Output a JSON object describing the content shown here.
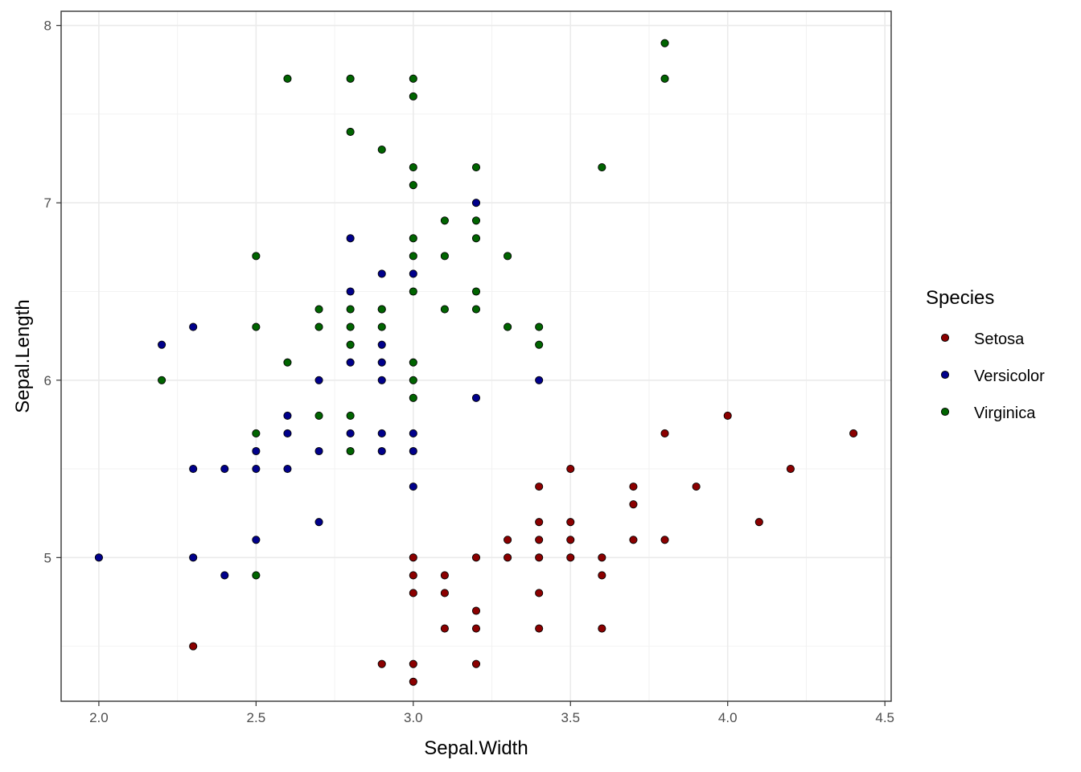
{
  "chart_data": {
    "type": "scatter",
    "xlabel": "Sepal.Width",
    "ylabel": "Sepal.Length",
    "xlim": [
      1.88,
      4.52
    ],
    "ylim": [
      4.19,
      8.08
    ],
    "x_ticks": [
      2.0,
      2.5,
      3.0,
      3.5,
      4.0,
      4.5
    ],
    "x_tick_labels": [
      "2.0",
      "2.5",
      "3.0",
      "3.5",
      "4.0",
      "4.5"
    ],
    "y_ticks": [
      5,
      6,
      7,
      8
    ],
    "y_tick_labels": [
      "5",
      "6",
      "7",
      "8"
    ],
    "grid": true,
    "legend": {
      "title": "Species",
      "position": "right"
    },
    "series": [
      {
        "name": "Setosa",
        "color": "#8b0000",
        "points": [
          [
            2.3,
            4.5
          ],
          [
            2.9,
            4.4
          ],
          [
            3.0,
            4.4
          ],
          [
            3.0,
            4.3
          ],
          [
            3.0,
            5.0
          ],
          [
            3.0,
            4.9
          ],
          [
            3.0,
            4.8
          ],
          [
            3.1,
            4.9
          ],
          [
            3.1,
            4.8
          ],
          [
            3.1,
            4.6
          ],
          [
            3.2,
            5.0
          ],
          [
            3.2,
            4.7
          ],
          [
            3.2,
            4.6
          ],
          [
            3.2,
            4.4
          ],
          [
            3.3,
            5.1
          ],
          [
            3.3,
            5.0
          ],
          [
            3.4,
            5.4
          ],
          [
            3.4,
            5.2
          ],
          [
            3.4,
            5.1
          ],
          [
            3.4,
            5.0
          ],
          [
            3.4,
            4.8
          ],
          [
            3.4,
            4.6
          ],
          [
            3.5,
            5.5
          ],
          [
            3.5,
            5.2
          ],
          [
            3.5,
            5.1
          ],
          [
            3.5,
            5.0
          ],
          [
            3.6,
            5.0
          ],
          [
            3.6,
            4.9
          ],
          [
            3.6,
            4.6
          ],
          [
            3.7,
            5.4
          ],
          [
            3.7,
            5.3
          ],
          [
            3.7,
            5.1
          ],
          [
            3.8,
            5.7
          ],
          [
            3.8,
            5.1
          ],
          [
            3.9,
            5.4
          ],
          [
            4.0,
            5.8
          ],
          [
            4.1,
            5.2
          ],
          [
            4.2,
            5.5
          ],
          [
            4.4,
            5.7
          ]
        ]
      },
      {
        "name": "Versicolor",
        "color": "#00008b",
        "points": [
          [
            2.0,
            5.0
          ],
          [
            2.2,
            6.2
          ],
          [
            2.3,
            6.3
          ],
          [
            2.3,
            5.5
          ],
          [
            2.3,
            5.0
          ],
          [
            2.4,
            5.5
          ],
          [
            2.4,
            4.9
          ],
          [
            2.5,
            5.6
          ],
          [
            2.5,
            5.5
          ],
          [
            2.5,
            5.1
          ],
          [
            2.6,
            5.8
          ],
          [
            2.6,
            5.7
          ],
          [
            2.6,
            5.5
          ],
          [
            2.7,
            6.0
          ],
          [
            2.7,
            5.6
          ],
          [
            2.7,
            5.2
          ],
          [
            2.8,
            6.8
          ],
          [
            2.8,
            6.5
          ],
          [
            2.8,
            6.1
          ],
          [
            2.8,
            5.7
          ],
          [
            2.9,
            6.6
          ],
          [
            2.9,
            6.4
          ],
          [
            2.9,
            6.2
          ],
          [
            2.9,
            6.1
          ],
          [
            2.9,
            6.0
          ],
          [
            2.9,
            5.7
          ],
          [
            2.9,
            5.6
          ],
          [
            3.0,
            6.6
          ],
          [
            3.0,
            5.7
          ],
          [
            3.0,
            5.6
          ],
          [
            3.0,
            5.4
          ],
          [
            3.2,
            7.0
          ],
          [
            3.2,
            5.9
          ],
          [
            3.4,
            6.0
          ]
        ]
      },
      {
        "name": "Virginica",
        "color": "#006400",
        "points": [
          [
            2.2,
            6.0
          ],
          [
            2.5,
            6.7
          ],
          [
            2.5,
            6.3
          ],
          [
            2.5,
            5.7
          ],
          [
            2.5,
            4.9
          ],
          [
            2.6,
            7.7
          ],
          [
            2.6,
            6.1
          ],
          [
            2.7,
            6.4
          ],
          [
            2.7,
            6.3
          ],
          [
            2.7,
            5.8
          ],
          [
            2.8,
            7.7
          ],
          [
            2.8,
            7.4
          ],
          [
            2.8,
            6.4
          ],
          [
            2.8,
            6.3
          ],
          [
            2.8,
            6.2
          ],
          [
            2.8,
            5.8
          ],
          [
            2.8,
            5.6
          ],
          [
            2.9,
            7.3
          ],
          [
            2.9,
            6.4
          ],
          [
            2.9,
            6.3
          ],
          [
            3.0,
            7.7
          ],
          [
            3.0,
            7.6
          ],
          [
            3.0,
            7.2
          ],
          [
            3.0,
            7.1
          ],
          [
            3.0,
            6.8
          ],
          [
            3.0,
            6.7
          ],
          [
            3.0,
            6.5
          ],
          [
            3.0,
            6.1
          ],
          [
            3.0,
            6.0
          ],
          [
            3.0,
            5.9
          ],
          [
            3.1,
            6.9
          ],
          [
            3.1,
            6.7
          ],
          [
            3.1,
            6.4
          ],
          [
            3.2,
            7.2
          ],
          [
            3.2,
            6.9
          ],
          [
            3.2,
            6.8
          ],
          [
            3.2,
            6.5
          ],
          [
            3.2,
            6.4
          ],
          [
            3.3,
            6.7
          ],
          [
            3.3,
            6.3
          ],
          [
            3.4,
            6.3
          ],
          [
            3.4,
            6.2
          ],
          [
            3.6,
            7.2
          ],
          [
            3.8,
            7.9
          ],
          [
            3.8,
            7.7
          ]
        ]
      }
    ]
  }
}
